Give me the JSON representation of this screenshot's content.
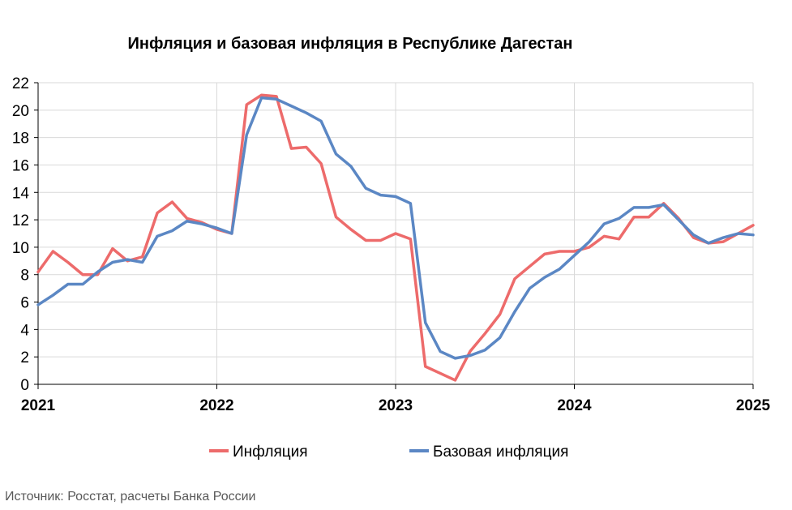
{
  "chart_data": {
    "type": "line",
    "title": "Инфляция и базовая инфляция в Республике Дагестан",
    "xlabel": "",
    "ylabel": "",
    "ylim": [
      0,
      22
    ],
    "yticks": [
      "0",
      "2",
      "4",
      "6",
      "8",
      "10",
      "12",
      "14",
      "16",
      "18",
      "20",
      "22"
    ],
    "xlim": [
      0,
      48
    ],
    "xticks": [
      {
        "label": "2021",
        "x": 0
      },
      {
        "label": "2022",
        "x": 12
      },
      {
        "label": "2023",
        "x": 24
      },
      {
        "label": "2024",
        "x": 36
      },
      {
        "label": "2025",
        "x": 48
      }
    ],
    "grid": true,
    "legend_position": "bottom-center",
    "series": [
      {
        "name": "Инфляция",
        "color": "#ED6B6B",
        "values": [
          8.2,
          9.7,
          8.9,
          8.0,
          8.0,
          9.9,
          9.0,
          9.3,
          12.5,
          13.3,
          12.1,
          11.8,
          11.3,
          11.0,
          20.4,
          21.1,
          21.0,
          17.2,
          17.3,
          16.1,
          12.2,
          11.3,
          10.5,
          10.5,
          11.0,
          10.6,
          1.3,
          0.8,
          0.3,
          2.4,
          3.7,
          5.1,
          7.7,
          8.6,
          9.5,
          9.7,
          9.7,
          10.0,
          10.8,
          10.6,
          12.2,
          12.2,
          13.2,
          12.1,
          10.7,
          10.3,
          10.4,
          11.0,
          11.6
        ]
      },
      {
        "name": "Базовая инфляция",
        "color": "#5B87C4",
        "values": [
          5.8,
          6.5,
          7.3,
          7.3,
          8.2,
          8.9,
          9.1,
          8.9,
          10.8,
          11.2,
          11.9,
          11.7,
          11.4,
          11.0,
          18.2,
          20.9,
          20.8,
          20.3,
          19.8,
          19.2,
          16.8,
          15.9,
          14.3,
          13.8,
          13.7,
          13.2,
          4.5,
          2.4,
          1.9,
          2.1,
          2.5,
          3.4,
          5.3,
          7.0,
          7.8,
          8.4,
          9.4,
          10.4,
          11.7,
          12.1,
          12.9,
          12.9,
          13.1,
          12.0,
          10.9,
          10.3,
          10.7,
          11.0,
          10.9
        ]
      }
    ]
  },
  "source": "Источник: Росстат, расчеты Банка России"
}
